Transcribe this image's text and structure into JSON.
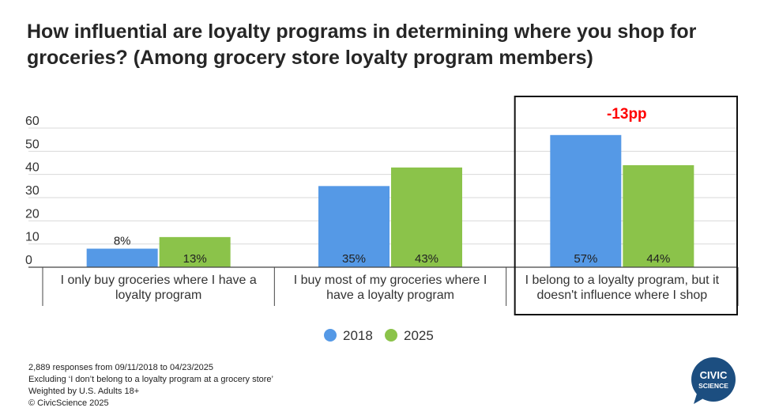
{
  "title": "How influential are loyalty programs in determining where you shop for groceries? (Among grocery store loyalty program members)",
  "chart_data": {
    "type": "bar",
    "categories": [
      [
        "I only buy groceries where I have a",
        "loyalty program"
      ],
      [
        "I buy most of my groceries where I",
        "have a loyalty program"
      ],
      [
        "I belong to a loyalty program, but it",
        "doesn't influence where I shop"
      ]
    ],
    "series": [
      {
        "name": "2018",
        "color": "#5599e6",
        "values": [
          8,
          35,
          57
        ],
        "labels": [
          "8%",
          "35%",
          "57%"
        ]
      },
      {
        "name": "2025",
        "color": "#8bc34a",
        "values": [
          13,
          43,
          44
        ],
        "labels": [
          "13%",
          "43%",
          "44%"
        ]
      }
    ],
    "ylim": [
      0,
      60
    ],
    "yticks": [
      0,
      10,
      20,
      30,
      40,
      50,
      60
    ],
    "grid": true,
    "legend": "bottom-center",
    "highlight": {
      "category_index": 2,
      "annotation": "-13pp",
      "annotation_color": "#ff0000"
    }
  },
  "footnotes": [
    "2,889 responses from 09/11/2018 to 04/23/2025",
    "Excluding ‘I don’t belong to a loyalty program at a grocery store’",
    "Weighted by U.S. Adults 18+",
    "© CivicScience 2025"
  ],
  "logo": {
    "line1": "CIVIC",
    "line2": "SCIENCE",
    "color": "#1c4e80"
  }
}
